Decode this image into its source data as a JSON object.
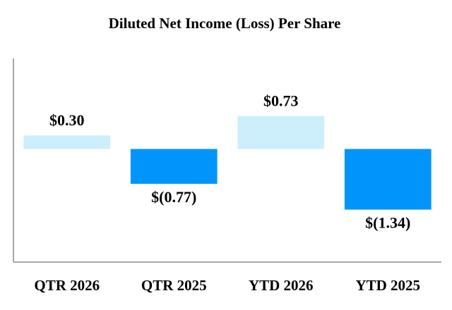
{
  "chart_data": {
    "type": "bar",
    "title": "Diluted Net Income (Loss) Per Share",
    "xlabel": "",
    "ylabel": "",
    "categories": [
      "QTR 2026",
      "QTR 2025",
      "YTD 2026",
      "YTD 2025"
    ],
    "values": [
      0.3,
      -0.77,
      0.73,
      -1.34
    ],
    "value_labels": [
      "$0.30",
      "$(0.77)",
      "$0.73",
      "$(1.34)"
    ],
    "ylim": [
      -2.5,
      2.0
    ],
    "grid": false,
    "legend": "none",
    "colors": {
      "positive": "#cdeefb",
      "negative": "#0195fb",
      "axis": "#a6a6a6",
      "text": "#000000"
    }
  }
}
